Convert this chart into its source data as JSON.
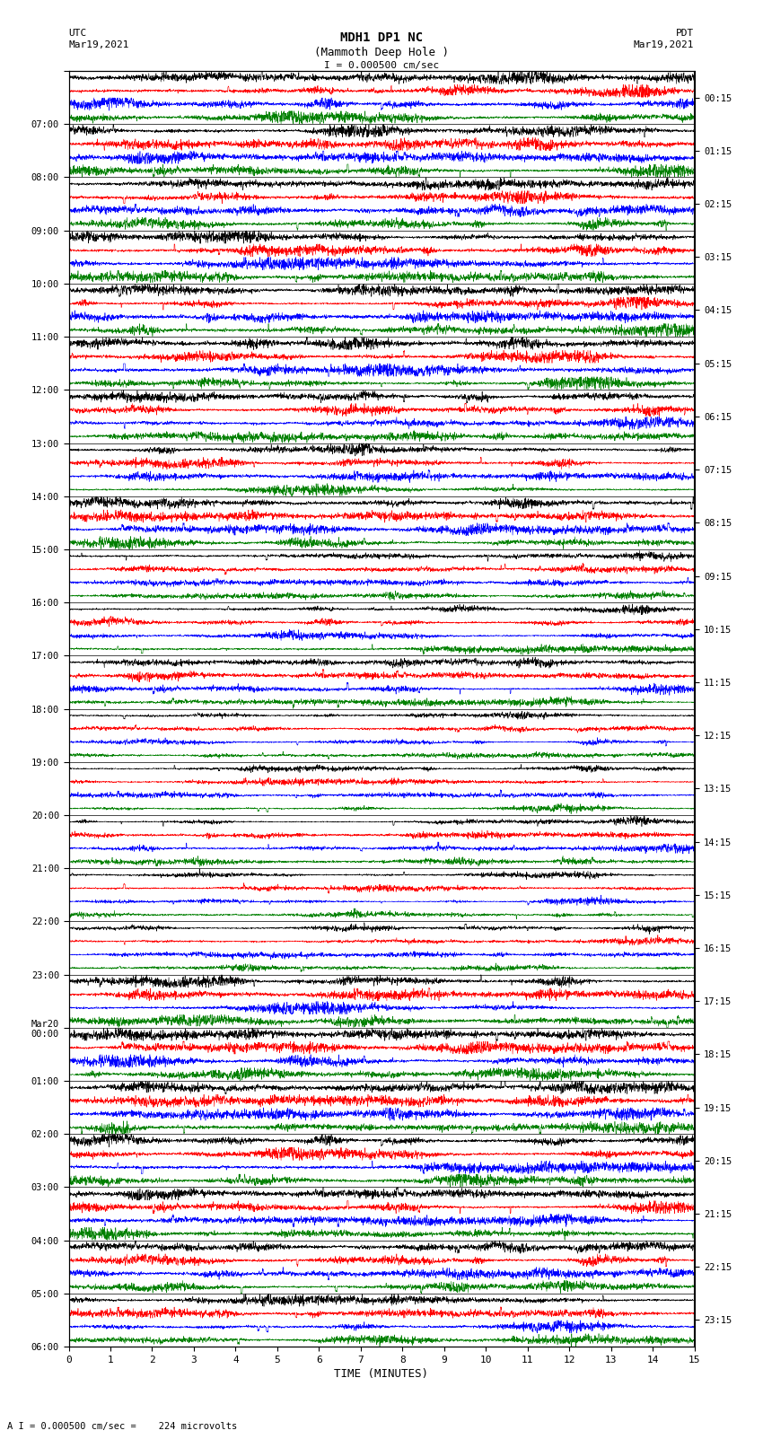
{
  "title_line1": "MDH1 DP1 NC",
  "title_line2": "(Mammoth Deep Hole )",
  "title_line3": "I = 0.000500 cm/sec",
  "left_label_top": "UTC",
  "left_label_date": "Mar19,2021",
  "right_label_top": "PDT",
  "right_label_date": "Mar19,2021",
  "bottom_label": "TIME (MINUTES)",
  "bottom_annotation": "A I = 0.000500 cm/sec =    224 microvolts",
  "left_times": [
    "07:00",
    "08:00",
    "09:00",
    "10:00",
    "11:00",
    "12:00",
    "13:00",
    "14:00",
    "15:00",
    "16:00",
    "17:00",
    "18:00",
    "19:00",
    "20:00",
    "21:00",
    "22:00",
    "23:00",
    "Mar20\n00:00",
    "01:00",
    "02:00",
    "03:00",
    "04:00",
    "05:00",
    "06:00"
  ],
  "right_times": [
    "00:15",
    "01:15",
    "02:15",
    "03:15",
    "04:15",
    "05:15",
    "06:15",
    "07:15",
    "08:15",
    "09:15",
    "10:15",
    "11:15",
    "12:15",
    "13:15",
    "14:15",
    "15:15",
    "16:15",
    "17:15",
    "18:15",
    "19:15",
    "20:15",
    "21:15",
    "22:15",
    "23:15"
  ],
  "n_traces": 24,
  "n_points": 3000,
  "time_min": 0,
  "time_max": 15,
  "background_color": "white",
  "colors": [
    "black",
    "red",
    "blue",
    "green"
  ],
  "x_ticks": [
    0,
    1,
    2,
    3,
    4,
    5,
    6,
    7,
    8,
    9,
    10,
    11,
    12,
    13,
    14,
    15
  ],
  "figsize": [
    8.5,
    16.13
  ],
  "dpi": 100,
  "amplitude_profiles": [
    0.9,
    0.9,
    0.8,
    0.85,
    0.85,
    0.9,
    0.75,
    0.7,
    0.8,
    0.5,
    0.55,
    0.6,
    0.4,
    0.45,
    0.5,
    0.45,
    0.45,
    0.85,
    0.9,
    0.9,
    0.85,
    0.8,
    0.75,
    0.7
  ]
}
